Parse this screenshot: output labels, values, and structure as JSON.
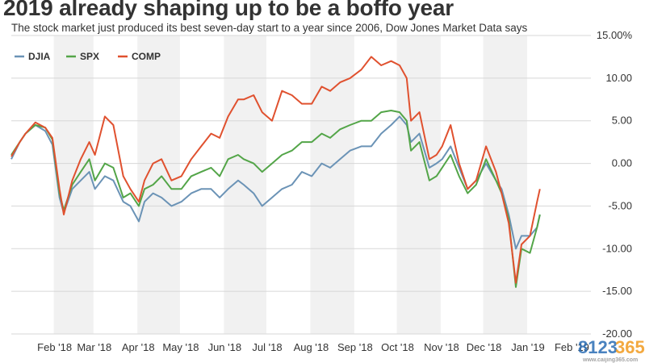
{
  "chart_data": {
    "type": "line",
    "title": "2019 already shaping up to be a boffo year",
    "subtitle": "The stock market just produced its best seven-day start to a year since 2006, Dow Jones Market Data says",
    "xlabel": "",
    "ylabel": "",
    "x_unit": "date",
    "xlim": [
      "2018-01-02",
      "2019-02-15"
    ],
    "ylim": [
      -20,
      15
    ],
    "y_ticks": [
      15,
      10,
      5,
      0,
      -5,
      -10,
      -15,
      -20
    ],
    "y_tick_labels": [
      "15.00%",
      "10.00",
      "5.00",
      "0.00",
      "-5.00",
      "-10.00",
      "-15.00",
      "-20.00"
    ],
    "x_ticks": [
      "2018-02-01",
      "2018-03-01",
      "2018-04-01",
      "2018-05-01",
      "2018-06-01",
      "2018-07-01",
      "2018-08-01",
      "2018-09-01",
      "2018-10-01",
      "2018-11-01",
      "2018-12-01",
      "2019-01-01",
      "2019-02-01"
    ],
    "x_tick_labels": [
      "Feb '18",
      "Mar '18",
      "Apr '18",
      "May '18",
      "Jun '18",
      "Jul '18",
      "Aug '18",
      "Sep '18",
      "Oct '18",
      "Nov '18",
      "Dec '18",
      "Jan '19",
      "Feb '19"
    ],
    "grid": true,
    "alternating_month_shading": true,
    "legend_position": "top-left",
    "series": [
      {
        "name": "DJIA",
        "color": "#6b93b6",
        "x": [
          "2018-01-02",
          "2018-01-08",
          "2018-01-12",
          "2018-01-19",
          "2018-01-26",
          "2018-01-31",
          "2018-02-05",
          "2018-02-08",
          "2018-02-14",
          "2018-02-20",
          "2018-02-26",
          "2018-03-02",
          "2018-03-09",
          "2018-03-15",
          "2018-03-22",
          "2018-03-27",
          "2018-04-02",
          "2018-04-06",
          "2018-04-12",
          "2018-04-18",
          "2018-04-25",
          "2018-05-02",
          "2018-05-09",
          "2018-05-16",
          "2018-05-23",
          "2018-05-29",
          "2018-06-04",
          "2018-06-11",
          "2018-06-15",
          "2018-06-22",
          "2018-06-28",
          "2018-07-05",
          "2018-07-12",
          "2018-07-19",
          "2018-07-26",
          "2018-08-02",
          "2018-08-09",
          "2018-08-15",
          "2018-08-22",
          "2018-08-29",
          "2018-09-06",
          "2018-09-13",
          "2018-09-20",
          "2018-09-27",
          "2018-10-03",
          "2018-10-08",
          "2018-10-11",
          "2018-10-17",
          "2018-10-24",
          "2018-10-29",
          "2018-11-02",
          "2018-11-08",
          "2018-11-14",
          "2018-11-20",
          "2018-11-26",
          "2018-12-03",
          "2018-12-10",
          "2018-12-14",
          "2018-12-19",
          "2018-12-24",
          "2018-12-28",
          "2019-01-03",
          "2019-01-08",
          "2019-01-10"
        ],
        "values": [
          0.5,
          2.5,
          3.5,
          4.5,
          3.8,
          2.2,
          -4.0,
          -5.8,
          -3.0,
          -2.0,
          -1.0,
          -3.0,
          -1.5,
          -2.0,
          -4.5,
          -5.0,
          -6.8,
          -4.5,
          -3.5,
          -4.0,
          -5.0,
          -4.5,
          -3.5,
          -3.0,
          -3.0,
          -4.0,
          -3.0,
          -2.0,
          -2.5,
          -3.5,
          -5.0,
          -4.0,
          -3.0,
          -2.5,
          -1.0,
          -1.5,
          0.0,
          -0.5,
          0.5,
          1.5,
          2.0,
          2.0,
          3.5,
          4.5,
          5.5,
          4.5,
          2.5,
          3.5,
          -0.5,
          0.0,
          0.5,
          2.0,
          -0.5,
          -3.0,
          -2.0,
          0.0,
          -2.0,
          -3.0,
          -6.0,
          -10.0,
          -8.5,
          -8.5,
          -7.5,
          -6.0
        ]
      },
      {
        "name": "SPX",
        "color": "#53a548",
        "x": [
          "2018-01-02",
          "2018-01-08",
          "2018-01-12",
          "2018-01-19",
          "2018-01-26",
          "2018-01-31",
          "2018-02-05",
          "2018-02-08",
          "2018-02-14",
          "2018-02-20",
          "2018-02-26",
          "2018-03-02",
          "2018-03-09",
          "2018-03-15",
          "2018-03-22",
          "2018-03-27",
          "2018-04-02",
          "2018-04-06",
          "2018-04-12",
          "2018-04-18",
          "2018-04-25",
          "2018-05-02",
          "2018-05-09",
          "2018-05-16",
          "2018-05-23",
          "2018-05-29",
          "2018-06-04",
          "2018-06-11",
          "2018-06-15",
          "2018-06-22",
          "2018-06-28",
          "2018-07-05",
          "2018-07-12",
          "2018-07-19",
          "2018-07-26",
          "2018-08-02",
          "2018-08-09",
          "2018-08-15",
          "2018-08-22",
          "2018-08-29",
          "2018-09-06",
          "2018-09-13",
          "2018-09-20",
          "2018-09-27",
          "2018-10-03",
          "2018-10-08",
          "2018-10-11",
          "2018-10-17",
          "2018-10-24",
          "2018-10-29",
          "2018-11-02",
          "2018-11-08",
          "2018-11-14",
          "2018-11-20",
          "2018-11-26",
          "2018-12-03",
          "2018-12-10",
          "2018-12-14",
          "2018-12-19",
          "2018-12-24",
          "2018-12-28",
          "2019-01-03",
          "2019-01-08",
          "2019-01-10"
        ],
        "values": [
          1.0,
          2.5,
          3.5,
          4.5,
          4.2,
          2.8,
          -3.5,
          -5.5,
          -2.5,
          -1.0,
          0.5,
          -2.0,
          0.0,
          -0.5,
          -4.0,
          -3.5,
          -5.0,
          -3.0,
          -2.5,
          -1.5,
          -3.0,
          -3.0,
          -1.5,
          -1.0,
          -0.5,
          -1.5,
          0.5,
          1.0,
          0.5,
          0.0,
          -1.0,
          0.0,
          1.0,
          1.5,
          2.5,
          2.5,
          3.5,
          3.0,
          4.0,
          4.5,
          5.0,
          5.0,
          6.0,
          6.2,
          6.0,
          5.0,
          1.5,
          2.5,
          -2.0,
          -1.5,
          -0.5,
          1.0,
          -1.5,
          -3.5,
          -2.5,
          0.5,
          -2.0,
          -3.5,
          -6.5,
          -14.5,
          -10.0,
          -10.5,
          -7.5,
          -6.0
        ]
      },
      {
        "name": "COMP",
        "color": "#e0512f",
        "x": [
          "2018-01-02",
          "2018-01-08",
          "2018-01-12",
          "2018-01-19",
          "2018-01-26",
          "2018-01-31",
          "2018-02-05",
          "2018-02-08",
          "2018-02-14",
          "2018-02-20",
          "2018-02-26",
          "2018-03-02",
          "2018-03-09",
          "2018-03-15",
          "2018-03-22",
          "2018-03-27",
          "2018-04-02",
          "2018-04-06",
          "2018-04-12",
          "2018-04-18",
          "2018-04-25",
          "2018-05-02",
          "2018-05-09",
          "2018-05-16",
          "2018-05-23",
          "2018-05-29",
          "2018-06-04",
          "2018-06-11",
          "2018-06-15",
          "2018-06-22",
          "2018-06-28",
          "2018-07-05",
          "2018-07-12",
          "2018-07-19",
          "2018-07-26",
          "2018-08-02",
          "2018-08-09",
          "2018-08-15",
          "2018-08-22",
          "2018-08-29",
          "2018-09-06",
          "2018-09-13",
          "2018-09-20",
          "2018-09-27",
          "2018-10-03",
          "2018-10-08",
          "2018-10-11",
          "2018-10-17",
          "2018-10-24",
          "2018-10-29",
          "2018-11-02",
          "2018-11-08",
          "2018-11-14",
          "2018-11-20",
          "2018-11-26",
          "2018-12-03",
          "2018-12-10",
          "2018-12-14",
          "2018-12-19",
          "2018-12-24",
          "2018-12-28",
          "2019-01-03",
          "2019-01-08",
          "2019-01-10"
        ],
        "values": [
          0.8,
          2.5,
          3.5,
          4.8,
          4.2,
          3.0,
          -3.0,
          -6.0,
          -2.0,
          0.5,
          2.5,
          1.0,
          5.5,
          4.5,
          -1.5,
          -3.0,
          -4.5,
          -2.0,
          0.0,
          0.5,
          -2.0,
          -1.5,
          0.5,
          2.0,
          3.5,
          3.0,
          5.5,
          7.5,
          7.5,
          8.0,
          6.0,
          5.0,
          8.5,
          8.0,
          7.0,
          7.0,
          9.0,
          8.5,
          9.5,
          10.0,
          11.0,
          12.5,
          11.5,
          12.0,
          11.5,
          10.0,
          5.0,
          6.0,
          0.5,
          1.0,
          2.0,
          4.5,
          0.0,
          -3.0,
          -2.0,
          2.0,
          -1.0,
          -3.5,
          -7.0,
          -14.0,
          -9.5,
          -8.5,
          -4.5,
          -3.0
        ]
      }
    ]
  },
  "watermark": {
    "text": "8123",
    "accent": "365",
    "subtext": "www.caijing365.com"
  }
}
